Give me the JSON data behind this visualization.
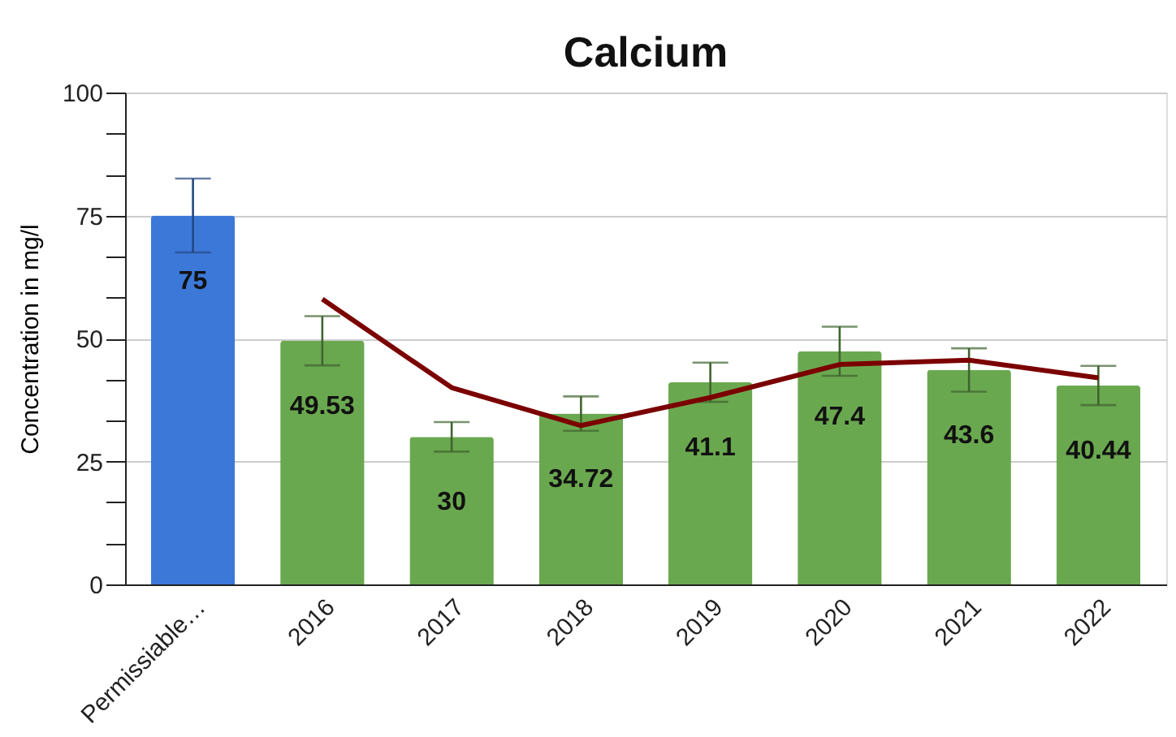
{
  "chart_data": {
    "type": "bar",
    "title": "Calcium",
    "ylabel": "Concentration in mg/l",
    "categories": [
      "Permissiable…",
      "2016",
      "2017",
      "2018",
      "2019",
      "2020",
      "2021",
      "2022"
    ],
    "series": [
      {
        "colors": [
          "#3c78d8",
          "#6aa84f",
          "#6aa84f",
          "#6aa84f",
          "#6aa84f",
          "#6aa84f",
          "#6aa84f",
          "#6aa84f"
        ],
        "values": [
          75,
          49.53,
          30,
          34.72,
          41.1,
          47.4,
          43.6,
          40.44
        ],
        "errors": [
          7.5,
          5,
          3,
          3.5,
          4,
          5,
          4.4,
          4
        ],
        "value_labels": [
          "75",
          "49.53",
          "30",
          "34.72",
          "41.1",
          "47.4",
          "43.6",
          "40.44"
        ]
      },
      {
        "type": "line",
        "color": "#7b0000",
        "values": [
          null,
          58,
          40,
          32.3,
          38,
          44.7,
          45.6,
          42
        ]
      }
    ],
    "ylim": [
      0,
      100
    ],
    "yticks": [
      0,
      {
        "value": 8.33,
        "label": null
      },
      {
        "value": 16.67,
        "label": null
      },
      25,
      {
        "value": 33.33,
        "label": null
      },
      {
        "value": 41.67,
        "label": null
      },
      50,
      {
        "value": 58.33,
        "label": null
      },
      {
        "value": 66.67,
        "label": null
      },
      75,
      {
        "value": 83.33,
        "label": null
      },
      {
        "value": 91.67,
        "label": null
      },
      100
    ],
    "grid": "y",
    "line_style": "solid",
    "marker": "none"
  }
}
